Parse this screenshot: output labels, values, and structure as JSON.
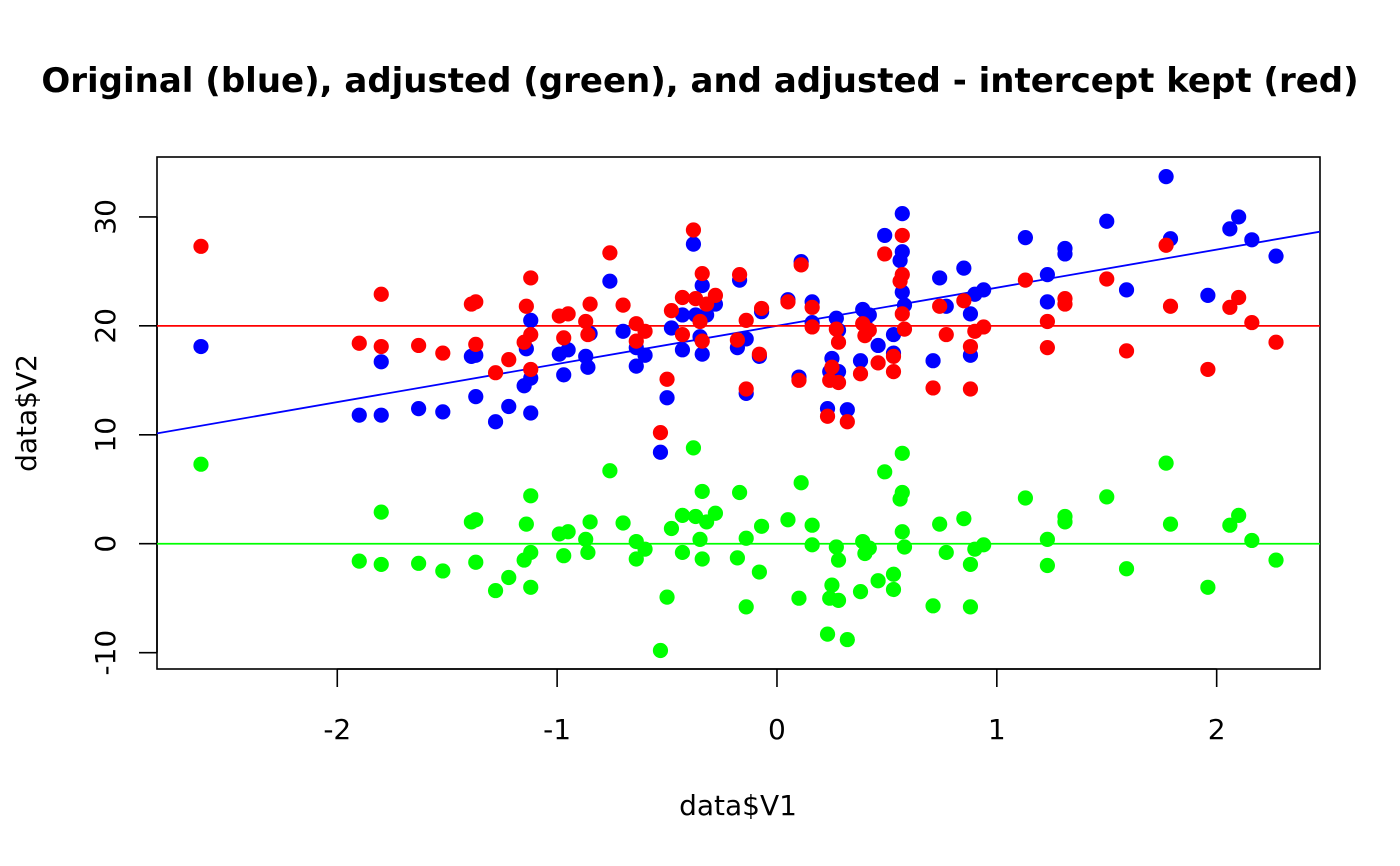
{
  "chart_data": {
    "type": "scatter",
    "title": "Original (blue), adjusted (green), and adjusted - intercept kept (red)",
    "xlabel": "data$V1",
    "ylabel": "data$V2",
    "xlim": [
      -2.82,
      2.47
    ],
    "ylim": [
      -11.5,
      35.5
    ],
    "x_ticks": [
      "-2",
      "-1",
      "0",
      "1",
      "2"
    ],
    "x_tick_values": [
      -2,
      -1,
      0,
      1,
      2
    ],
    "y_ticks": [
      "-10",
      "0",
      "10",
      "20",
      "30"
    ],
    "y_tick_values": [
      -10,
      0,
      10,
      20,
      30
    ],
    "grid": false,
    "colors": {
      "original": "#0000ff",
      "adjusted": "#00ff00",
      "intercept": "#ff0000"
    },
    "series": [
      {
        "name": "original",
        "color": "#0000ff",
        "points": [
          [
            -2.62,
            18.1
          ],
          [
            -1.9,
            11.8
          ],
          [
            -1.8,
            11.8
          ],
          [
            -1.8,
            16.7
          ],
          [
            -1.63,
            12.4
          ],
          [
            -1.52,
            12.1
          ],
          [
            -1.39,
            17.2
          ],
          [
            -1.37,
            17.3
          ],
          [
            -1.37,
            13.5
          ],
          [
            -1.28,
            11.2
          ],
          [
            -1.22,
            12.6
          ],
          [
            -1.15,
            14.5
          ],
          [
            -1.14,
            17.9
          ],
          [
            -1.12,
            15.2
          ],
          [
            -1.12,
            12.0
          ],
          [
            -1.12,
            20.5
          ],
          [
            -0.99,
            17.4
          ],
          [
            -0.97,
            15.5
          ],
          [
            -0.95,
            17.8
          ],
          [
            -0.87,
            17.2
          ],
          [
            -0.86,
            16.2
          ],
          [
            -0.85,
            19.3
          ],
          [
            -0.76,
            24.1
          ],
          [
            -0.7,
            19.5
          ],
          [
            -0.64,
            18.0
          ],
          [
            -0.64,
            16.3
          ],
          [
            -0.6,
            17.3
          ],
          [
            -0.53,
            8.4
          ],
          [
            -0.5,
            13.4
          ],
          [
            -0.48,
            19.8
          ],
          [
            -0.43,
            17.8
          ],
          [
            -0.43,
            21.0
          ],
          [
            -0.38,
            27.5
          ],
          [
            -0.37,
            21.0
          ],
          [
            -0.35,
            19.0
          ],
          [
            -0.34,
            23.7
          ],
          [
            -0.34,
            17.4
          ],
          [
            -0.32,
            21.0
          ],
          [
            -0.28,
            22.0
          ],
          [
            -0.18,
            18.0
          ],
          [
            -0.17,
            24.2
          ],
          [
            -0.14,
            18.8
          ],
          [
            -0.14,
            13.8
          ],
          [
            -0.08,
            17.2
          ],
          [
            -0.07,
            21.3
          ],
          [
            0.05,
            22.4
          ],
          [
            0.1,
            15.3
          ],
          [
            0.11,
            25.9
          ],
          [
            0.16,
            22.2
          ],
          [
            0.16,
            20.3
          ],
          [
            0.23,
            12.4
          ],
          [
            0.24,
            15.8
          ],
          [
            0.25,
            17.0
          ],
          [
            0.27,
            20.7
          ],
          [
            0.28,
            19.6
          ],
          [
            0.28,
            15.8
          ],
          [
            0.32,
            12.3
          ],
          [
            0.38,
            16.8
          ],
          [
            0.39,
            21.5
          ],
          [
            0.4,
            20.4
          ],
          [
            0.42,
            21.0
          ],
          [
            0.46,
            18.2
          ],
          [
            0.49,
            28.3
          ],
          [
            0.53,
            17.5
          ],
          [
            0.53,
            19.2
          ],
          [
            0.56,
            26.0
          ],
          [
            0.57,
            23.1
          ],
          [
            0.57,
            30.3
          ],
          [
            0.57,
            26.8
          ],
          [
            0.58,
            21.9
          ],
          [
            0.71,
            16.8
          ],
          [
            0.74,
            24.4
          ],
          [
            0.77,
            21.8
          ],
          [
            0.85,
            25.3
          ],
          [
            0.88,
            17.3
          ],
          [
            0.88,
            21.1
          ],
          [
            0.9,
            22.9
          ],
          [
            0.94,
            23.3
          ],
          [
            1.13,
            28.1
          ],
          [
            1.23,
            24.7
          ],
          [
            1.23,
            22.2
          ],
          [
            1.31,
            26.6
          ],
          [
            1.31,
            27.1
          ],
          [
            1.5,
            29.6
          ],
          [
            1.59,
            23.3
          ],
          [
            1.77,
            33.7
          ],
          [
            1.79,
            28.0
          ],
          [
            1.96,
            22.8
          ],
          [
            2.06,
            28.9
          ],
          [
            2.1,
            30.0
          ],
          [
            2.16,
            27.9
          ],
          [
            2.27,
            26.4
          ]
        ]
      },
      {
        "name": "adjusted",
        "color": "#00ff00",
        "points": [
          [
            -2.62,
            7.3
          ],
          [
            -1.9,
            -1.6
          ],
          [
            -1.8,
            -1.9
          ],
          [
            -1.8,
            2.9
          ],
          [
            -1.63,
            -1.8
          ],
          [
            -1.52,
            -2.5
          ],
          [
            -1.39,
            2.0
          ],
          [
            -1.37,
            2.2
          ],
          [
            -1.37,
            -1.7
          ],
          [
            -1.28,
            -4.3
          ],
          [
            -1.22,
            -3.1
          ],
          [
            -1.15,
            -1.5
          ],
          [
            -1.14,
            1.8
          ],
          [
            -1.12,
            -0.8
          ],
          [
            -1.12,
            -4.0
          ],
          [
            -1.12,
            4.4
          ],
          [
            -0.99,
            0.9
          ],
          [
            -0.97,
            -1.1
          ],
          [
            -0.95,
            1.1
          ],
          [
            -0.87,
            0.4
          ],
          [
            -0.86,
            -0.8
          ],
          [
            -0.85,
            2.0
          ],
          [
            -0.76,
            6.7
          ],
          [
            -0.7,
            1.9
          ],
          [
            -0.64,
            0.2
          ],
          [
            -0.64,
            -1.4
          ],
          [
            -0.6,
            -0.5
          ],
          [
            -0.53,
            -9.8
          ],
          [
            -0.5,
            -4.9
          ],
          [
            -0.48,
            1.4
          ],
          [
            -0.43,
            -0.8
          ],
          [
            -0.43,
            2.6
          ],
          [
            -0.38,
            8.8
          ],
          [
            -0.37,
            2.5
          ],
          [
            -0.35,
            0.4
          ],
          [
            -0.34,
            4.8
          ],
          [
            -0.34,
            -1.4
          ],
          [
            -0.32,
            2.0
          ],
          [
            -0.28,
            2.8
          ],
          [
            -0.18,
            -1.3
          ],
          [
            -0.17,
            4.7
          ],
          [
            -0.14,
            0.5
          ],
          [
            -0.14,
            -5.8
          ],
          [
            -0.08,
            -2.6
          ],
          [
            -0.07,
            1.6
          ],
          [
            0.05,
            2.2
          ],
          [
            0.1,
            -5.0
          ],
          [
            0.11,
            5.6
          ],
          [
            0.16,
            1.7
          ],
          [
            0.16,
            -0.1
          ],
          [
            0.23,
            -8.3
          ],
          [
            0.24,
            -5.0
          ],
          [
            0.25,
            -3.8
          ],
          [
            0.27,
            -0.3
          ],
          [
            0.28,
            -1.5
          ],
          [
            0.28,
            -5.2
          ],
          [
            0.32,
            -8.8
          ],
          [
            0.38,
            -4.4
          ],
          [
            0.39,
            0.2
          ],
          [
            0.4,
            -0.9
          ],
          [
            0.42,
            -0.4
          ],
          [
            0.46,
            -3.4
          ],
          [
            0.49,
            6.6
          ],
          [
            0.53,
            -4.2
          ],
          [
            0.53,
            -2.8
          ],
          [
            0.56,
            4.1
          ],
          [
            0.57,
            1.1
          ],
          [
            0.57,
            8.3
          ],
          [
            0.57,
            4.7
          ],
          [
            0.58,
            -0.3
          ],
          [
            0.71,
            -5.7
          ],
          [
            0.74,
            1.8
          ],
          [
            0.77,
            -0.8
          ],
          [
            0.85,
            2.3
          ],
          [
            0.88,
            -5.8
          ],
          [
            0.88,
            -1.9
          ],
          [
            0.9,
            -0.5
          ],
          [
            0.94,
            -0.1
          ],
          [
            1.13,
            4.2
          ],
          [
            1.23,
            0.4
          ],
          [
            1.23,
            -2.0
          ],
          [
            1.31,
            2.0
          ],
          [
            1.31,
            2.5
          ],
          [
            1.5,
            4.3
          ],
          [
            1.59,
            -2.3
          ],
          [
            1.77,
            7.4
          ],
          [
            1.79,
            1.8
          ],
          [
            1.96,
            -4.0
          ],
          [
            2.06,
            1.7
          ],
          [
            2.1,
            2.6
          ],
          [
            2.16,
            0.3
          ],
          [
            2.27,
            -1.5
          ]
        ]
      },
      {
        "name": "intercept kept",
        "color": "#ff0000",
        "points": [
          [
            -2.62,
            27.3
          ],
          [
            -1.9,
            18.4
          ],
          [
            -1.8,
            18.1
          ],
          [
            -1.8,
            22.9
          ],
          [
            -1.63,
            18.2
          ],
          [
            -1.52,
            17.5
          ],
          [
            -1.39,
            22.0
          ],
          [
            -1.37,
            22.2
          ],
          [
            -1.37,
            18.3
          ],
          [
            -1.28,
            15.7
          ],
          [
            -1.22,
            16.9
          ],
          [
            -1.15,
            18.5
          ],
          [
            -1.14,
            21.8
          ],
          [
            -1.12,
            19.2
          ],
          [
            -1.12,
            16.0
          ],
          [
            -1.12,
            24.4
          ],
          [
            -0.99,
            20.9
          ],
          [
            -0.97,
            18.9
          ],
          [
            -0.95,
            21.1
          ],
          [
            -0.87,
            20.4
          ],
          [
            -0.86,
            19.2
          ],
          [
            -0.85,
            22.0
          ],
          [
            -0.76,
            26.7
          ],
          [
            -0.7,
            21.9
          ],
          [
            -0.64,
            20.2
          ],
          [
            -0.64,
            18.6
          ],
          [
            -0.6,
            19.5
          ],
          [
            -0.53,
            10.2
          ],
          [
            -0.5,
            15.1
          ],
          [
            -0.48,
            21.4
          ],
          [
            -0.43,
            19.2
          ],
          [
            -0.43,
            22.6
          ],
          [
            -0.38,
            28.8
          ],
          [
            -0.37,
            22.5
          ],
          [
            -0.35,
            20.4
          ],
          [
            -0.34,
            24.8
          ],
          [
            -0.34,
            18.6
          ],
          [
            -0.32,
            22.0
          ],
          [
            -0.28,
            22.8
          ],
          [
            -0.18,
            18.7
          ],
          [
            -0.17,
            24.7
          ],
          [
            -0.14,
            20.5
          ],
          [
            -0.14,
            14.2
          ],
          [
            -0.08,
            17.4
          ],
          [
            -0.07,
            21.6
          ],
          [
            0.05,
            22.2
          ],
          [
            0.1,
            15.0
          ],
          [
            0.11,
            25.6
          ],
          [
            0.16,
            21.7
          ],
          [
            0.16,
            19.9
          ],
          [
            0.23,
            11.7
          ],
          [
            0.24,
            15.0
          ],
          [
            0.25,
            16.2
          ],
          [
            0.27,
            19.7
          ],
          [
            0.28,
            18.5
          ],
          [
            0.28,
            14.8
          ],
          [
            0.32,
            11.2
          ],
          [
            0.38,
            15.6
          ],
          [
            0.39,
            20.2
          ],
          [
            0.4,
            19.1
          ],
          [
            0.42,
            19.6
          ],
          [
            0.46,
            16.6
          ],
          [
            0.49,
            26.6
          ],
          [
            0.53,
            15.8
          ],
          [
            0.53,
            17.2
          ],
          [
            0.56,
            24.1
          ],
          [
            0.57,
            21.1
          ],
          [
            0.57,
            28.3
          ],
          [
            0.57,
            24.7
          ],
          [
            0.58,
            19.7
          ],
          [
            0.71,
            14.3
          ],
          [
            0.74,
            21.8
          ],
          [
            0.77,
            19.2
          ],
          [
            0.85,
            22.3
          ],
          [
            0.88,
            14.2
          ],
          [
            0.88,
            18.1
          ],
          [
            0.9,
            19.5
          ],
          [
            0.94,
            19.9
          ],
          [
            1.13,
            24.2
          ],
          [
            1.23,
            20.4
          ],
          [
            1.23,
            18.0
          ],
          [
            1.31,
            22.0
          ],
          [
            1.31,
            22.5
          ],
          [
            1.5,
            24.3
          ],
          [
            1.59,
            17.7
          ],
          [
            1.77,
            27.4
          ],
          [
            1.79,
            21.8
          ],
          [
            1.96,
            16.0
          ],
          [
            2.06,
            21.7
          ],
          [
            2.1,
            22.6
          ],
          [
            2.16,
            20.3
          ],
          [
            2.27,
            18.5
          ]
        ]
      }
    ],
    "lines": [
      {
        "name": "original fit",
        "color": "#0000ff",
        "intercept": 20.0,
        "slope": 3.5
      },
      {
        "name": "adjusted fit",
        "color": "#00ff00",
        "intercept": 0.0,
        "slope": 0.0
      },
      {
        "name": "intercept kept fit",
        "color": "#ff0000",
        "intercept": 20.0,
        "slope": 0.0
      }
    ]
  }
}
